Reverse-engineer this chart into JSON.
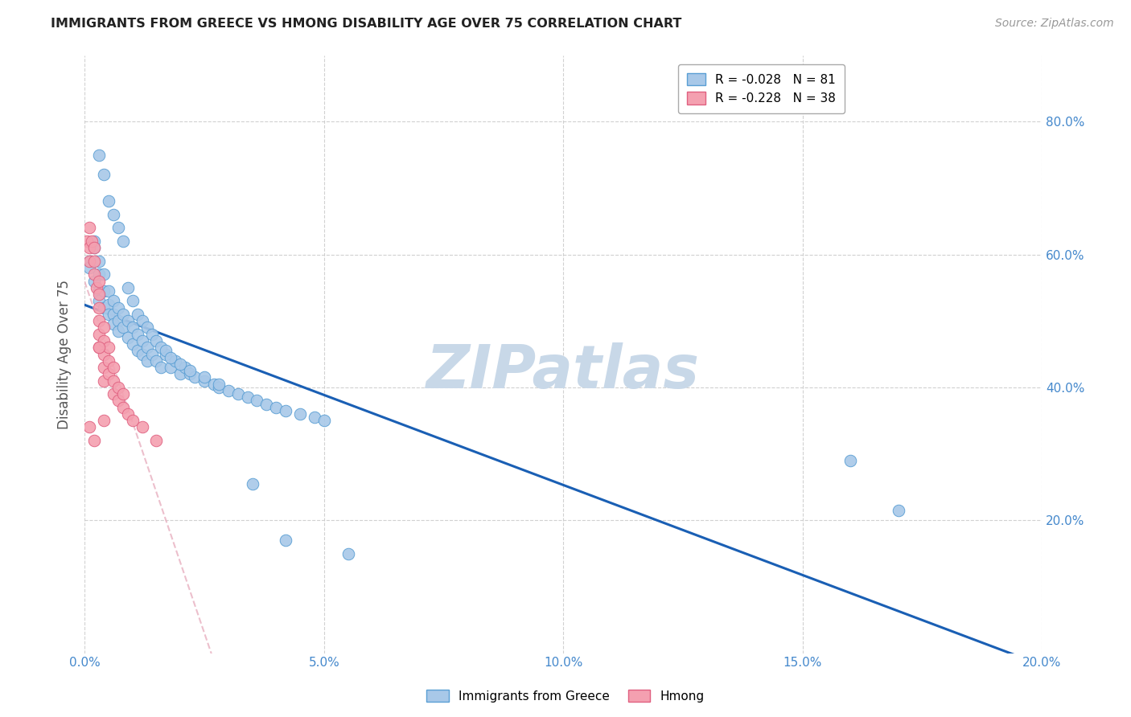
{
  "title": "IMMIGRANTS FROM GREECE VS HMONG DISABILITY AGE OVER 75 CORRELATION CHART",
  "source": "Source: ZipAtlas.com",
  "ylabel": "Disability Age Over 75",
  "xlim": [
    0.0,
    0.2
  ],
  "ylim": [
    0.0,
    0.9
  ],
  "xtick_labels": [
    "0.0%",
    "5.0%",
    "10.0%",
    "15.0%",
    "20.0%"
  ],
  "xtick_vals": [
    0.0,
    0.05,
    0.1,
    0.15,
    0.2
  ],
  "ytick_labels": [
    "20.0%",
    "40.0%",
    "60.0%",
    "80.0%"
  ],
  "ytick_vals": [
    0.2,
    0.4,
    0.6,
    0.8
  ],
  "legend_labels": [
    "Immigrants from Greece",
    "Hmong"
  ],
  "series1_label": "R = -0.028   N = 81",
  "series2_label": "R = -0.228   N = 38",
  "series1_color": "#a8c8e8",
  "series2_color": "#f4a0b0",
  "series1_edge": "#5a9fd4",
  "series2_edge": "#e06080",
  "trendline1_color": "#1a5fb4",
  "trendline2_color": "#e8b0c0",
  "watermark": "ZIPatlas",
  "background_color": "#ffffff",
  "grid_color": "#cccccc",
  "title_color": "#222222",
  "axis_color": "#4488cc",
  "watermark_color": "#c8d8e8",
  "greece_x": [
    0.001,
    0.001,
    0.002,
    0.002,
    0.002,
    0.003,
    0.003,
    0.003,
    0.003,
    0.004,
    0.004,
    0.004,
    0.005,
    0.005,
    0.005,
    0.006,
    0.006,
    0.006,
    0.007,
    0.007,
    0.007,
    0.008,
    0.008,
    0.009,
    0.009,
    0.01,
    0.01,
    0.011,
    0.011,
    0.012,
    0.012,
    0.013,
    0.013,
    0.014,
    0.015,
    0.016,
    0.017,
    0.018,
    0.019,
    0.02,
    0.021,
    0.022,
    0.023,
    0.025,
    0.027,
    0.028,
    0.03,
    0.032,
    0.034,
    0.036,
    0.038,
    0.04,
    0.042,
    0.045,
    0.048,
    0.05,
    0.003,
    0.004,
    0.005,
    0.006,
    0.007,
    0.008,
    0.009,
    0.01,
    0.011,
    0.012,
    0.013,
    0.014,
    0.015,
    0.016,
    0.017,
    0.018,
    0.02,
    0.022,
    0.025,
    0.028,
    0.035,
    0.042,
    0.055,
    0.16,
    0.17
  ],
  "greece_y": [
    0.59,
    0.58,
    0.62,
    0.61,
    0.56,
    0.59,
    0.57,
    0.545,
    0.53,
    0.57,
    0.545,
    0.52,
    0.545,
    0.525,
    0.51,
    0.53,
    0.51,
    0.495,
    0.52,
    0.5,
    0.485,
    0.51,
    0.49,
    0.5,
    0.475,
    0.49,
    0.465,
    0.48,
    0.455,
    0.47,
    0.45,
    0.46,
    0.44,
    0.45,
    0.44,
    0.43,
    0.45,
    0.43,
    0.44,
    0.42,
    0.43,
    0.42,
    0.415,
    0.41,
    0.405,
    0.4,
    0.395,
    0.39,
    0.385,
    0.38,
    0.375,
    0.37,
    0.365,
    0.36,
    0.355,
    0.35,
    0.75,
    0.72,
    0.68,
    0.66,
    0.64,
    0.62,
    0.55,
    0.53,
    0.51,
    0.5,
    0.49,
    0.48,
    0.47,
    0.46,
    0.455,
    0.445,
    0.435,
    0.425,
    0.415,
    0.405,
    0.255,
    0.17,
    0.15,
    0.29,
    0.215
  ],
  "hmong_x": [
    0.0005,
    0.001,
    0.001,
    0.001,
    0.0015,
    0.002,
    0.002,
    0.002,
    0.0025,
    0.003,
    0.003,
    0.003,
    0.003,
    0.003,
    0.003,
    0.004,
    0.004,
    0.004,
    0.004,
    0.004,
    0.005,
    0.005,
    0.005,
    0.006,
    0.006,
    0.006,
    0.007,
    0.007,
    0.008,
    0.008,
    0.009,
    0.01,
    0.012,
    0.015,
    0.001,
    0.002,
    0.003,
    0.004
  ],
  "hmong_y": [
    0.62,
    0.64,
    0.61,
    0.59,
    0.62,
    0.61,
    0.59,
    0.57,
    0.55,
    0.56,
    0.54,
    0.52,
    0.5,
    0.48,
    0.46,
    0.49,
    0.47,
    0.45,
    0.43,
    0.41,
    0.46,
    0.44,
    0.42,
    0.43,
    0.41,
    0.39,
    0.4,
    0.38,
    0.39,
    0.37,
    0.36,
    0.35,
    0.34,
    0.32,
    0.34,
    0.32,
    0.46,
    0.35
  ]
}
